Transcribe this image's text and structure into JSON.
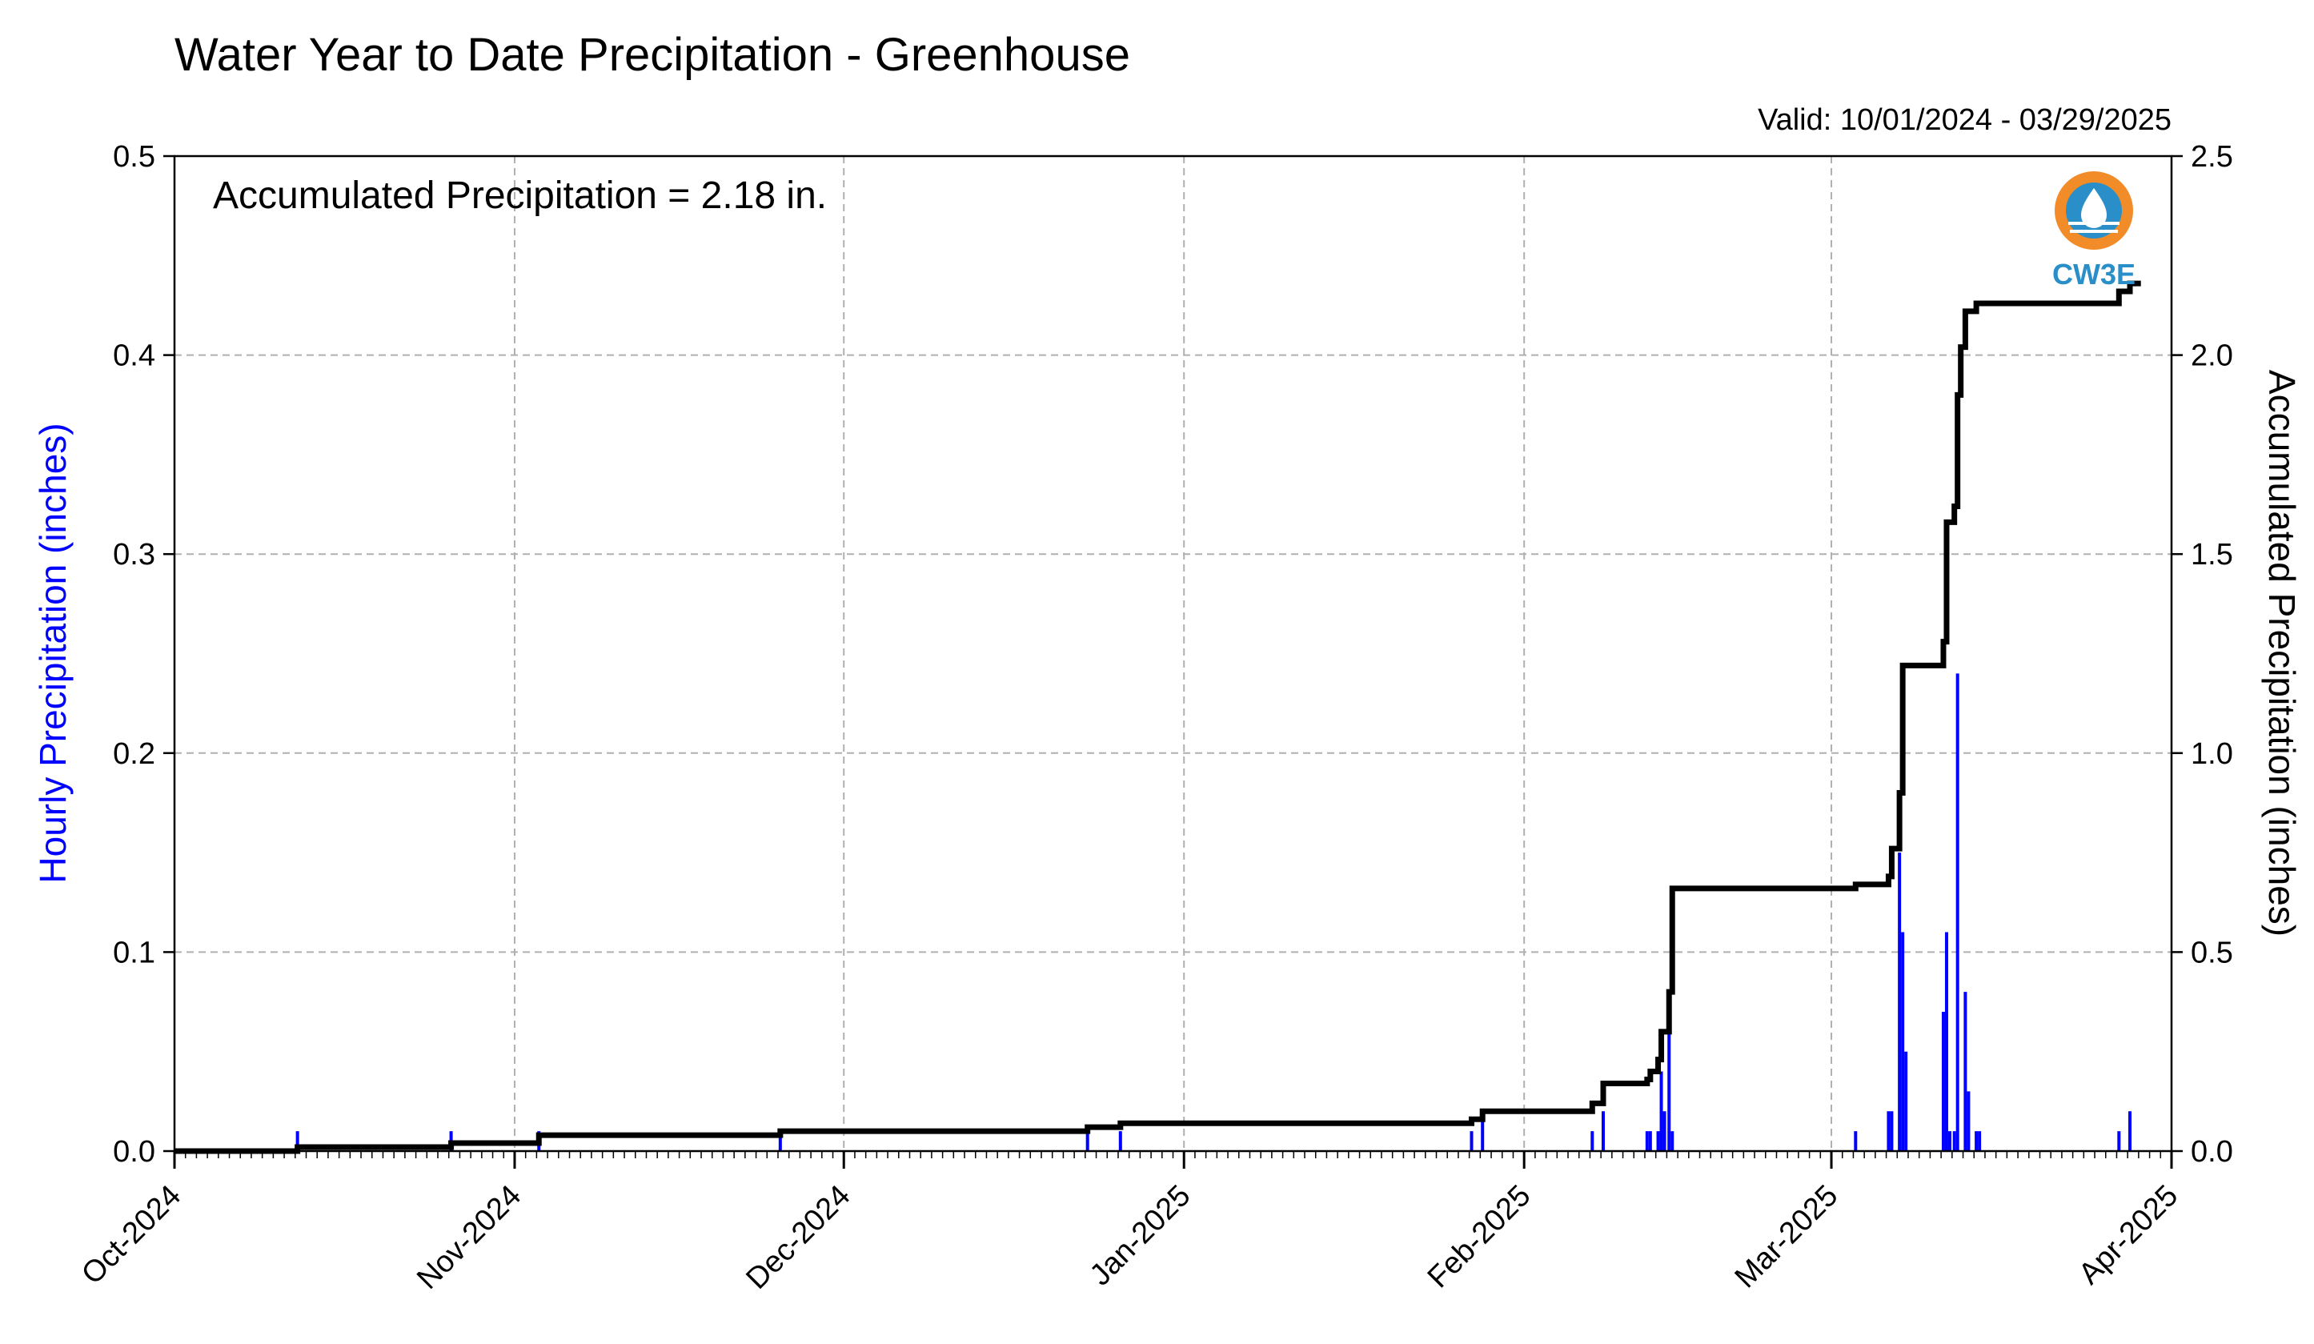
{
  "chart_data": {
    "type": "bar",
    "title": "Water Year to Date Precipitation - Greenhouse",
    "subtitle": "Valid: 10/01/2024 - 03/29/2025",
    "annotation": "Accumulated Precipitation = 2.18 in.",
    "ylabel_left": "Hourly Precipitation (inches)",
    "ylabel_right": "Accumulated Precipitation (inches)",
    "xlabel": "",
    "xlim": [
      "2024-10-01",
      "2025-04-01"
    ],
    "ylim_left": [
      0,
      0.5
    ],
    "ylim_right": [
      0,
      2.5
    ],
    "grid": true,
    "colors": {
      "hourly": "#0000ff",
      "accumulated": "#000000",
      "grid": "#b0b0b0",
      "left_label": "#0000ff"
    },
    "x_ticks": [
      {
        "label": "Oct-2024",
        "date": "2024-10-01"
      },
      {
        "label": "Nov-2024",
        "date": "2024-11-01"
      },
      {
        "label": "Dec-2024",
        "date": "2024-12-01"
      },
      {
        "label": "Jan-2025",
        "date": "2025-01-01"
      },
      {
        "label": "Feb-2025",
        "date": "2025-02-01"
      },
      {
        "label": "Mar-2025",
        "date": "2025-03-01"
      },
      {
        "label": "Apr-2025",
        "date": "2025-04-01"
      }
    ],
    "y_ticks_left": [
      "0.0",
      "0.1",
      "0.2",
      "0.3",
      "0.4",
      "0.5"
    ],
    "y_ticks_right": [
      "0.0",
      "0.5",
      "1.0",
      "1.5",
      "2.0",
      "2.5"
    ],
    "series": [
      {
        "name": "Hourly Precipitation",
        "kind": "bar",
        "points": [
          {
            "x": "2024-10-12",
            "y": 0.01
          },
          {
            "x": "2024-10-26",
            "y": 0.01
          },
          {
            "x": "2024-11-03",
            "y": 0.01
          },
          {
            "x": "2024-11-25",
            "y": 0.01
          },
          {
            "x": "2024-12-23",
            "y": 0.01
          },
          {
            "x": "2024-12-26",
            "y": 0.01
          },
          {
            "x": "2025-01-27",
            "y": 0.01
          },
          {
            "x": "2025-01-28",
            "y": 0.02
          },
          {
            "x": "2025-02-07",
            "y": 0.01
          },
          {
            "x": "2025-02-08",
            "y": 0.02
          },
          {
            "x": "2025-02-12",
            "y": 0.01
          },
          {
            "x": "2025-02-12",
            "y": 0.01
          },
          {
            "x": "2025-02-13",
            "y": 0.01
          },
          {
            "x": "2025-02-13",
            "y": 0.04
          },
          {
            "x": "2025-02-13",
            "y": 0.02
          },
          {
            "x": "2025-02-14",
            "y": 0.06
          },
          {
            "x": "2025-02-14",
            "y": 0.01
          },
          {
            "x": "2025-03-03",
            "y": 0.01
          },
          {
            "x": "2025-03-06",
            "y": 0.02
          },
          {
            "x": "2025-03-06",
            "y": 0.02
          },
          {
            "x": "2025-03-07",
            "y": 0.15
          },
          {
            "x": "2025-03-07",
            "y": 0.11
          },
          {
            "x": "2025-03-07",
            "y": 0.05
          },
          {
            "x": "2025-03-11",
            "y": 0.07
          },
          {
            "x": "2025-03-11",
            "y": 0.11
          },
          {
            "x": "2025-03-11",
            "y": 0.01
          },
          {
            "x": "2025-03-12",
            "y": 0.01
          },
          {
            "x": "2025-03-12",
            "y": 0.24
          },
          {
            "x": "2025-03-13",
            "y": 0.08
          },
          {
            "x": "2025-03-13",
            "y": 0.03
          },
          {
            "x": "2025-03-14",
            "y": 0.01
          },
          {
            "x": "2025-03-14",
            "y": 0.01
          },
          {
            "x": "2025-03-27",
            "y": 0.01
          },
          {
            "x": "2025-03-28",
            "y": 0.02
          }
        ]
      },
      {
        "name": "Accumulated Precipitation",
        "kind": "step",
        "points": [
          {
            "x": "2024-10-01",
            "y": 0.0
          },
          {
            "x": "2024-10-12",
            "y": 0.01
          },
          {
            "x": "2024-10-26",
            "y": 0.02
          },
          {
            "x": "2024-11-03",
            "y": 0.04
          },
          {
            "x": "2024-11-25",
            "y": 0.05
          },
          {
            "x": "2024-12-23",
            "y": 0.06
          },
          {
            "x": "2024-12-26",
            "y": 0.07
          },
          {
            "x": "2025-01-27",
            "y": 0.08
          },
          {
            "x": "2025-01-28",
            "y": 0.1
          },
          {
            "x": "2025-02-07",
            "y": 0.12
          },
          {
            "x": "2025-02-08",
            "y": 0.17
          },
          {
            "x": "2025-02-12",
            "y": 0.18
          },
          {
            "x": "2025-02-12",
            "y": 0.2
          },
          {
            "x": "2025-02-13",
            "y": 0.23
          },
          {
            "x": "2025-02-13",
            "y": 0.3
          },
          {
            "x": "2025-02-14",
            "y": 0.4
          },
          {
            "x": "2025-02-14",
            "y": 0.66
          },
          {
            "x": "2025-03-03",
            "y": 0.67
          },
          {
            "x": "2025-03-06",
            "y": 0.69
          },
          {
            "x": "2025-03-06",
            "y": 0.76
          },
          {
            "x": "2025-03-07",
            "y": 0.9
          },
          {
            "x": "2025-03-07",
            "y": 1.22
          },
          {
            "x": "2025-03-11",
            "y": 1.28
          },
          {
            "x": "2025-03-11",
            "y": 1.58
          },
          {
            "x": "2025-03-12",
            "y": 1.62
          },
          {
            "x": "2025-03-12",
            "y": 1.9
          },
          {
            "x": "2025-03-12",
            "y": 2.02
          },
          {
            "x": "2025-03-13",
            "y": 2.11
          },
          {
            "x": "2025-03-14",
            "y": 2.13
          },
          {
            "x": "2025-03-27",
            "y": 2.16
          },
          {
            "x": "2025-03-28",
            "y": 2.18
          },
          {
            "x": "2025-03-29",
            "y": 2.18
          }
        ]
      }
    ]
  },
  "logo": {
    "text": "CW3E",
    "colors": {
      "ring": "#f28c28",
      "inner": "#2a8fc8"
    }
  }
}
